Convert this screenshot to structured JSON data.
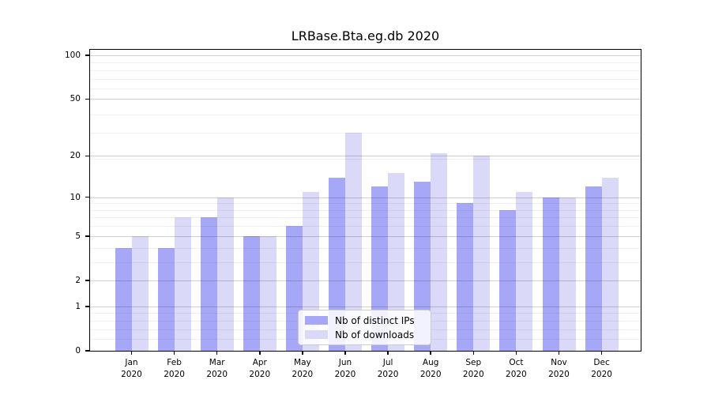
{
  "chart_data": {
    "type": "bar",
    "title": "LRBase.Bta.eg.db 2020",
    "categories": [
      "Jan 2020",
      "Feb 2020",
      "Mar 2020",
      "Apr 2020",
      "May 2020",
      "Jun 2020",
      "Jul 2020",
      "Aug 2020",
      "Sep 2020",
      "Oct 2020",
      "Nov 2020",
      "Dec 2020"
    ],
    "series": [
      {
        "name": "Nb of distinct IPs",
        "color": "#a7a7f7",
        "values": [
          4,
          4,
          7,
          5,
          6,
          14,
          12,
          13,
          9,
          8,
          10,
          12
        ]
      },
      {
        "name": "Nb of downloads",
        "color": "#dadaf8",
        "values": [
          5,
          7,
          10,
          5,
          11,
          29,
          15,
          21,
          20,
          11,
          10,
          14
        ]
      }
    ],
    "xlabel": "",
    "ylabel": "",
    "yscale": "log10(value+1)",
    "yticks": [
      0,
      1,
      2,
      5,
      10,
      20,
      50,
      100
    ],
    "minor_yticks": [
      0.2,
      0.4,
      0.6,
      0.8,
      3,
      4,
      6,
      7,
      8,
      9,
      19,
      29,
      39,
      59,
      69,
      79,
      89
    ],
    "ylim": [
      0,
      109
    ],
    "grid": "major and minor horizontal gridlines drawn over bars",
    "legend_position": "lower center"
  },
  "legend": {
    "items": [
      {
        "label": "Nb of distinct IPs",
        "color": "#a7a7f7"
      },
      {
        "label": "Nb of downloads",
        "color": "#dadaf8"
      }
    ]
  }
}
